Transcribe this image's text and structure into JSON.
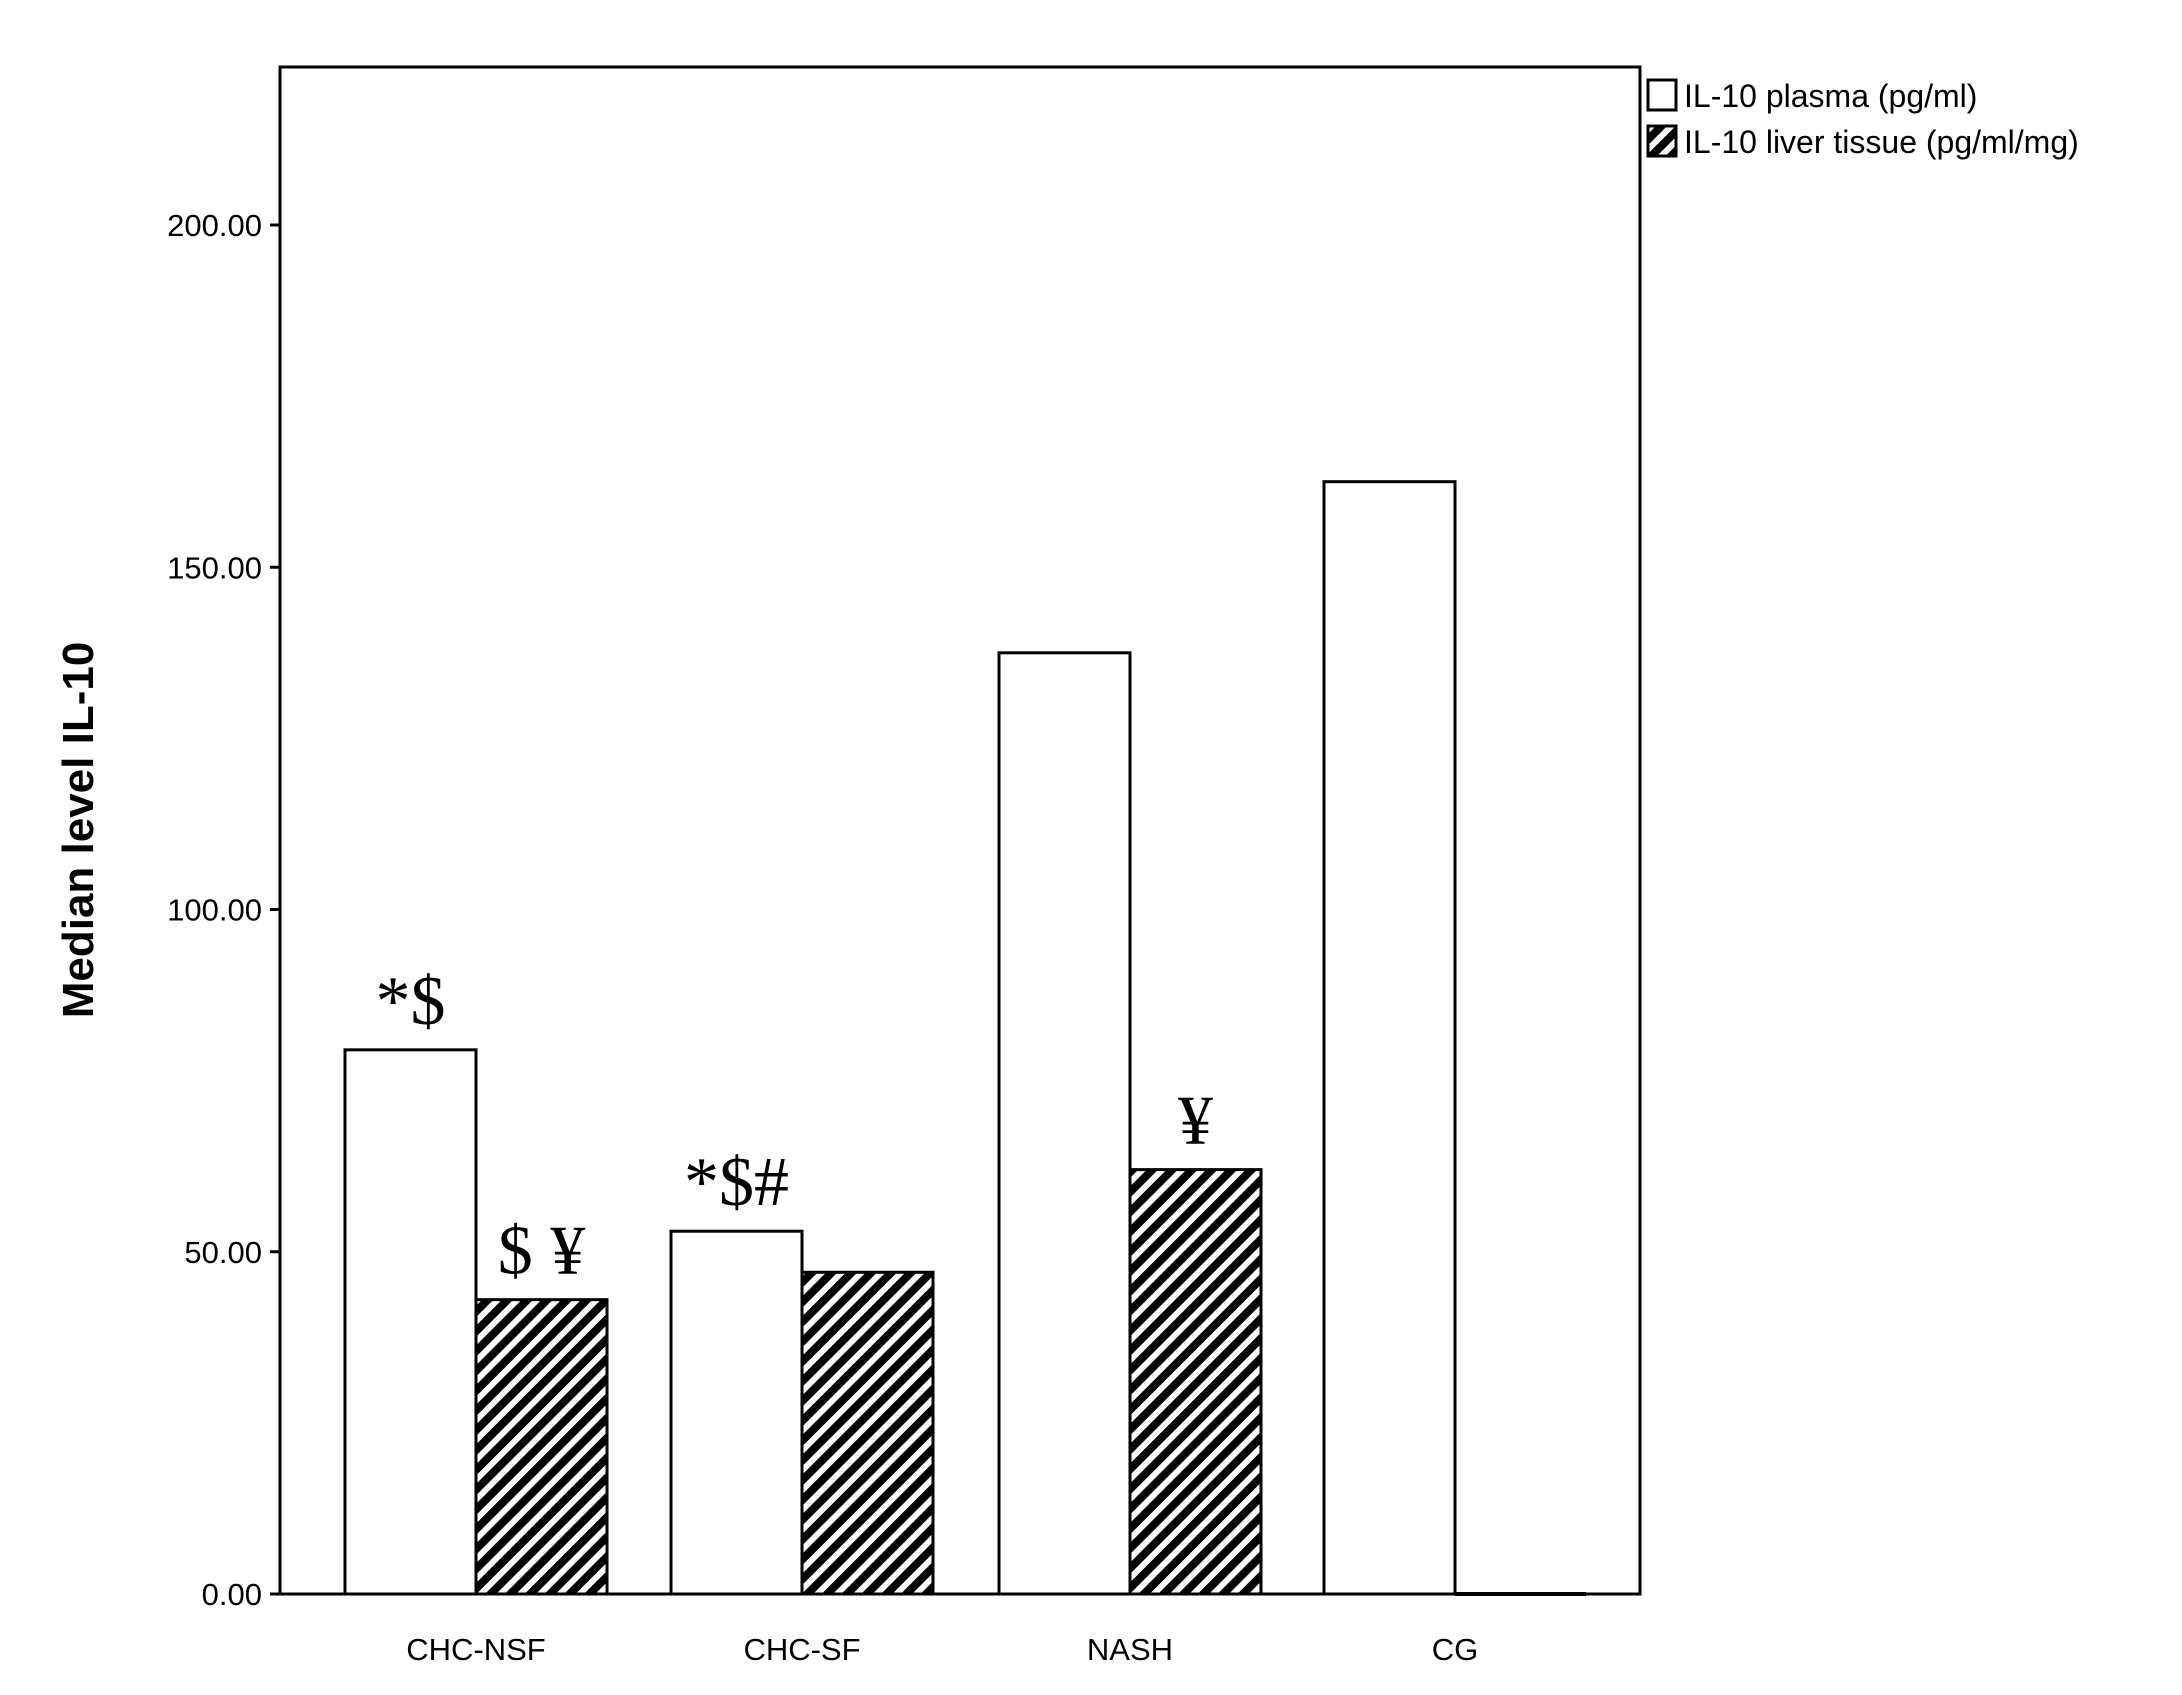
{
  "chart_data": {
    "type": "bar",
    "title": "",
    "xlabel": "",
    "ylabel": "Median level IL-10",
    "ylim": [
      0,
      222
    ],
    "yticks": [
      0,
      50,
      100,
      150,
      200
    ],
    "ytick_labels": [
      "0.00",
      "50.00",
      "100.00",
      "150.00",
      "200.00"
    ],
    "categories": [
      "CHC-NSF",
      "CHC-SF",
      "NASH",
      "CG"
    ],
    "series": [
      {
        "name": "IL-10 plasma (pg/ml)",
        "values": [
          79.5,
          53,
          137.5,
          162.5
        ],
        "fill": "white"
      },
      {
        "name": "IL-10 liver tissue (pg/ml/mg)",
        "values": [
          43,
          47,
          62,
          0
        ],
        "fill": "hatched"
      }
    ],
    "annotations": [
      {
        "text": "*$",
        "category": "CHC-NSF",
        "series": 0
      },
      {
        "text": "$ ¥",
        "category": "CHC-NSF",
        "series": 1
      },
      {
        "text": "*$#",
        "category": "CHC-SF",
        "series": 0
      },
      {
        "text": "¥",
        "category": "NASH",
        "series": 1
      }
    ],
    "legend_position": "top-right, outside plot",
    "grid": false,
    "colors": {
      "bar_stroke": "#000000",
      "plasma_fill": "#ffffff",
      "hatch": "#000000"
    }
  }
}
